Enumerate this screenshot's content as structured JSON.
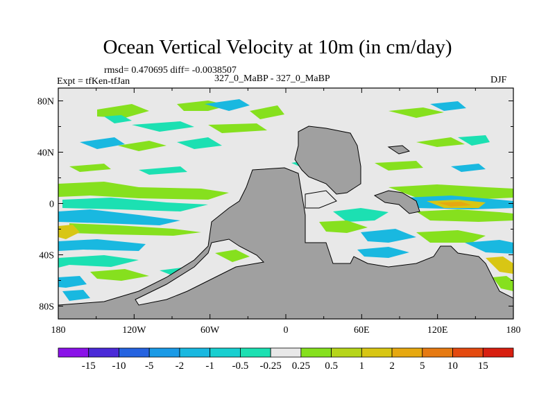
{
  "header": {
    "title": "Ocean Vertical Velocity at 10m (in cm/day)",
    "stats": "rmsd= 0.470695 diff= -0.0038507",
    "experiment": "Expt = tfKen-tfJan",
    "center": "327_0_MaBP - 327_0_MaBP",
    "season": "DJF"
  },
  "chart_data": {
    "type": "heatmap",
    "title": "Ocean Vertical Velocity at 10m (in cm/day)",
    "x_ticks": [
      "180",
      "120W",
      "60W",
      "0",
      "60E",
      "120E",
      "180"
    ],
    "y_ticks": [
      "80N",
      "40N",
      "0",
      "40S",
      "80S"
    ],
    "xlim": [
      -180,
      180
    ],
    "ylim": [
      -90,
      90
    ],
    "x_tick_values": [
      -180,
      -120,
      -60,
      0,
      60,
      120,
      180
    ],
    "y_tick_values": [
      80,
      40,
      0,
      -40,
      -80
    ],
    "colorbar": {
      "labels": [
        "-15",
        "-10",
        "-5",
        "-2",
        "-1",
        "-0.5",
        "-0.25",
        "0.25",
        "0.5",
        "1",
        "2",
        "5",
        "10",
        "15"
      ],
      "colors": [
        "#8a12e8",
        "#4a2ad8",
        "#2563e0",
        "#1a9ae6",
        "#19b8e0",
        "#18cfd0",
        "#1ce0b2",
        "#e8e8e8",
        "#86e01e",
        "#b6d51a",
        "#d8c614",
        "#e6a810",
        "#e67a12",
        "#e44a10",
        "#d81f10"
      ]
    },
    "land_color": "#a0a0a0",
    "background_color": "#e8e8e8"
  }
}
